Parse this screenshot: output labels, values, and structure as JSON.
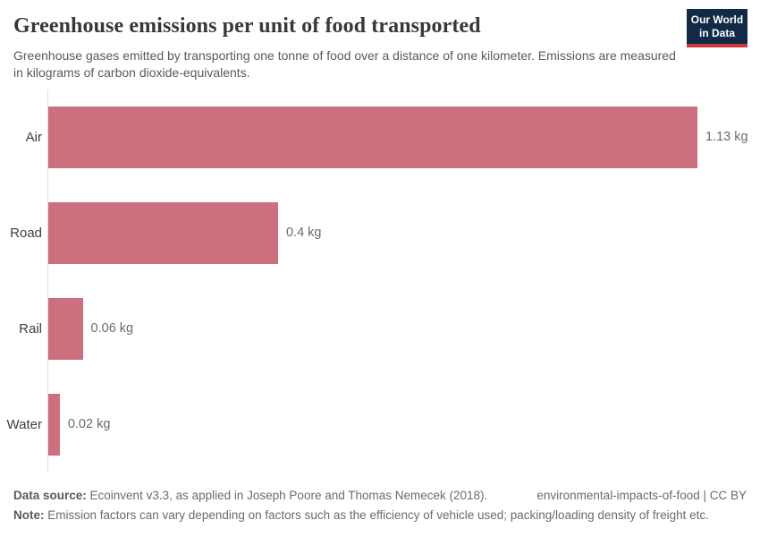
{
  "header": {
    "title": "Greenhouse emissions per unit of food transported",
    "subtitle": "Greenhouse gases emitted by transporting one tonne of food over a distance of one kilometer. Emissions are measured in kilograms of carbon dioxide-equivalents.",
    "logo": {
      "line1": "Our World",
      "line2": "in Data"
    }
  },
  "chart_data": {
    "type": "bar",
    "orientation": "horizontal",
    "title": "Greenhouse emissions per unit of food transported",
    "categories": [
      "Air",
      "Road",
      "Rail",
      "Water"
    ],
    "values": [
      1.13,
      0.4,
      0.06,
      0.02
    ],
    "value_labels": [
      "1.13 kg",
      "0.4 kg",
      "0.06 kg",
      "0.02 kg"
    ],
    "unit": "kg",
    "xlabel": "",
    "ylabel": "",
    "xlim": [
      0,
      1.13
    ],
    "grid": false,
    "legend": "none",
    "bar_color": "#cc7080",
    "axis_color": "#dedede"
  },
  "footer": {
    "source_label": "Data source:",
    "source_text": " Ecoinvent v3.3, as applied in Joseph Poore and Thomas Nemecek (2018).",
    "right_text": "environmental-impacts-of-food | CC BY",
    "note_label": "Note:",
    "note_text": " Emission factors can vary depending on factors such as the efficiency of vehicle used; packing/loading density of freight etc."
  },
  "colors": {
    "bar": "#cc7080",
    "logo_background": "#122947",
    "logo_stripe": "#d0383f",
    "title_text": "#383838",
    "subtitle_text": "#5a5a5a"
  }
}
